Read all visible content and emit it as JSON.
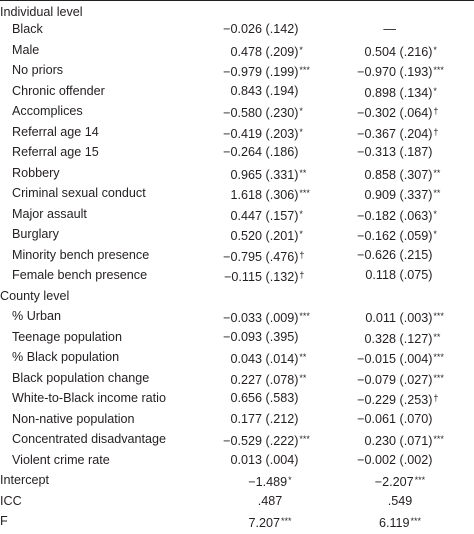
{
  "sections": [
    {
      "title": "Individual level",
      "rows": [
        {
          "label": "Black",
          "c1": {
            "est": "−0.026",
            "se": "(.142)",
            "sig": ""
          },
          "c2": {
            "est": "—",
            "se": "",
            "sig": ""
          }
        },
        {
          "label": "Male",
          "c1": {
            "est": "0.478",
            "se": "(.209)",
            "sig": "*"
          },
          "c2": {
            "est": "0.504",
            "se": "(.216)",
            "sig": "*"
          }
        },
        {
          "label": "No priors",
          "c1": {
            "est": "−0.979",
            "se": "(.199)",
            "sig": "***"
          },
          "c2": {
            "est": "−0.970",
            "se": "(.193)",
            "sig": "***"
          }
        },
        {
          "label": "Chronic offender",
          "c1": {
            "est": "0.843",
            "se": "(.194)",
            "sig": ""
          },
          "c2": {
            "est": "0.898",
            "se": "(.134)",
            "sig": "*"
          }
        },
        {
          "label": "Accomplices",
          "c1": {
            "est": "−0.580",
            "se": "(.230)",
            "sig": "*"
          },
          "c2": {
            "est": "−0.302",
            "se": "(.064)",
            "sig": "†"
          }
        },
        {
          "label": "Referral age 14",
          "c1": {
            "est": "−0.419",
            "se": "(.203)",
            "sig": "*"
          },
          "c2": {
            "est": "−0.367",
            "se": "(.204)",
            "sig": "†"
          }
        },
        {
          "label": "Referral age 15",
          "c1": {
            "est": "−0.264",
            "se": "(.186)",
            "sig": ""
          },
          "c2": {
            "est": "−0.313",
            "se": "(.187)",
            "sig": ""
          }
        },
        {
          "label": "Robbery",
          "c1": {
            "est": "0.965",
            "se": "(.331)",
            "sig": "**"
          },
          "c2": {
            "est": "0.858",
            "se": "(.307)",
            "sig": "**"
          }
        },
        {
          "label": "Criminal sexual conduct",
          "c1": {
            "est": "1.618",
            "se": "(.306)",
            "sig": "***"
          },
          "c2": {
            "est": "0.909",
            "se": "(.337)",
            "sig": "**"
          }
        },
        {
          "label": "Major assault",
          "c1": {
            "est": "0.447",
            "se": "(.157)",
            "sig": "*"
          },
          "c2": {
            "est": "−0.182",
            "se": "(.063)",
            "sig": "*"
          }
        },
        {
          "label": "Burglary",
          "c1": {
            "est": "0.520",
            "se": "(.201)",
            "sig": "*"
          },
          "c2": {
            "est": "−0.162",
            "se": "(.059)",
            "sig": "*"
          }
        },
        {
          "label": "Minority bench presence",
          "c1": {
            "est": "−0.795",
            "se": "(.476)",
            "sig": "†"
          },
          "c2": {
            "est": "−0.626",
            "se": "(.215)",
            "sig": ""
          }
        },
        {
          "label": "Female bench presence",
          "c1": {
            "est": "−0.115",
            "se": "(.132)",
            "sig": "†"
          },
          "c2": {
            "est": "0.118",
            "se": "(.075)",
            "sig": ""
          }
        }
      ]
    },
    {
      "title": "County level",
      "rows": [
        {
          "label": "% Urban",
          "c1": {
            "est": "−0.033",
            "se": "(.009)",
            "sig": "***"
          },
          "c2": {
            "est": "0.011",
            "se": "(.003)",
            "sig": "***"
          }
        },
        {
          "label": "Teenage population",
          "c1": {
            "est": "−0.093",
            "se": "(.395)",
            "sig": ""
          },
          "c2": {
            "est": "0.328",
            "se": "(.127)",
            "sig": "**"
          }
        },
        {
          "label": "% Black population",
          "c1": {
            "est": "0.043",
            "se": "(.014)",
            "sig": "**"
          },
          "c2": {
            "est": "−0.015",
            "se": "(.004)",
            "sig": "***"
          }
        },
        {
          "label": "Black population change",
          "c1": {
            "est": "0.227",
            "se": "(.078)",
            "sig": "**"
          },
          "c2": {
            "est": "−0.079",
            "se": "(.027)",
            "sig": "***"
          }
        },
        {
          "label": "White-to-Black income ratio",
          "c1": {
            "est": "0.656",
            "se": "(.583)",
            "sig": ""
          },
          "c2": {
            "est": "−0.229",
            "se": "(.253)",
            "sig": "†"
          }
        },
        {
          "label": "Non-native population",
          "c1": {
            "est": "0.177",
            "se": "(.212)",
            "sig": ""
          },
          "c2": {
            "est": "−0.061",
            "se": "(.070)",
            "sig": ""
          }
        },
        {
          "label": "Concentrated disadvantage",
          "c1": {
            "est": "−0.529",
            "se": "(.222)",
            "sig": "***"
          },
          "c2": {
            "est": "0.230",
            "se": "(.071)",
            "sig": "***"
          }
        },
        {
          "label": "Violent crime rate",
          "c1": {
            "est": "0.013",
            "se": "(.004)",
            "sig": ""
          },
          "c2": {
            "est": "−0.002",
            "se": "(.002)",
            "sig": ""
          }
        }
      ]
    }
  ],
  "footer": [
    {
      "label": "Intercept",
      "c1": {
        "est": "−1.489",
        "sig": "*"
      },
      "c2": {
        "est": "−2.207",
        "sig": "***"
      }
    },
    {
      "label": "ICC",
      "c1": {
        "est": ".487",
        "sig": ""
      },
      "c2": {
        "est": ".549",
        "sig": ""
      }
    },
    {
      "label": "F",
      "c1": {
        "est": "7.207",
        "sig": "***"
      },
      "c2": {
        "est": "6.119",
        "sig": "***"
      }
    }
  ]
}
